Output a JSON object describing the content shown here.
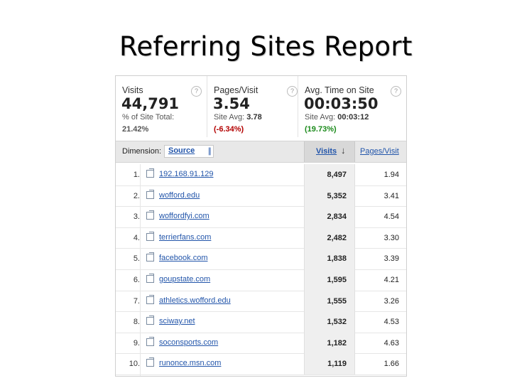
{
  "title": "Referring Sites Report",
  "metrics": [
    {
      "label": "Visits",
      "value": "44,791",
      "sub_label": "% of Site Total:",
      "sub_value": "",
      "change": "21.42%",
      "change_tone": "gray"
    },
    {
      "label": "Pages/Visit",
      "value": "3.54",
      "sub_label": "Site Avg: ",
      "sub_value": "3.78",
      "change": "(-6.34%)",
      "change_tone": "red"
    },
    {
      "label": "Avg. Time on Site",
      "value": "00:03:50",
      "sub_label": "Site Avg: ",
      "sub_value": "00:03:12",
      "change": "(19.73%)",
      "change_tone": "green"
    }
  ],
  "help_glyph": "?",
  "dimension": {
    "label": "Dimension:",
    "value": "Source",
    "chevron": "∥"
  },
  "columns": {
    "visits": "Visits",
    "sort_arrow": "↓",
    "pages_per_visit": "Pages/Visit"
  },
  "rows": [
    {
      "num": "1.",
      "source": "192.168.91.129",
      "visits": "8,497",
      "ppv": "1.94"
    },
    {
      "num": "2.",
      "source": "wofford.edu",
      "visits": "5,352",
      "ppv": "3.41"
    },
    {
      "num": "3.",
      "source": "woffordfyi.com",
      "visits": "2,834",
      "ppv": "4.54"
    },
    {
      "num": "4.",
      "source": "terrierfans.com",
      "visits": "2,482",
      "ppv": "3.30"
    },
    {
      "num": "5.",
      "source": "facebook.com",
      "visits": "1,838",
      "ppv": "3.39"
    },
    {
      "num": "6.",
      "source": "goupstate.com",
      "visits": "1,595",
      "ppv": "4.21"
    },
    {
      "num": "7.",
      "source": "athletics.wofford.edu",
      "visits": "1,555",
      "ppv": "3.26"
    },
    {
      "num": "8.",
      "source": "sciway.net",
      "visits": "1,532",
      "ppv": "4.53"
    },
    {
      "num": "9.",
      "source": "soconsports.com",
      "visits": "1,182",
      "ppv": "4.63"
    },
    {
      "num": "10.",
      "source": "runonce.msn.com",
      "visits": "1,119",
      "ppv": "1.66"
    }
  ],
  "colors": {
    "link": "#2255aa",
    "negative": "#b30000",
    "positive": "#1a8a1a"
  }
}
